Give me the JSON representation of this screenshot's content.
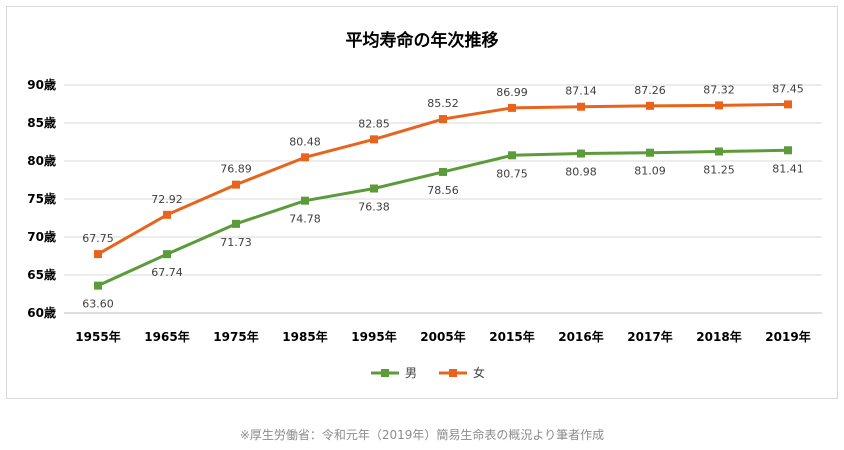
{
  "chart_data": {
    "type": "line",
    "title": "平均寿命の年次推移",
    "categories": [
      "1955年",
      "1965年",
      "1975年",
      "1985年",
      "1995年",
      "2005年",
      "2015年",
      "2016年",
      "2017年",
      "2018年",
      "2019年"
    ],
    "series": [
      {
        "name": "男",
        "color": "#5b9b3a",
        "values": [
          63.6,
          67.74,
          71.73,
          74.78,
          76.38,
          78.56,
          80.75,
          80.98,
          81.09,
          81.25,
          81.41
        ],
        "labels": [
          "63.60",
          "67.74",
          "71.73",
          "74.78",
          "76.38",
          "78.56",
          "80.75",
          "80.98",
          "81.09",
          "81.25",
          "81.41"
        ]
      },
      {
        "name": "女",
        "color": "#e8641d",
        "values": [
          67.75,
          72.92,
          76.89,
          80.48,
          82.85,
          85.52,
          86.99,
          87.14,
          87.26,
          87.32,
          87.45
        ],
        "labels": [
          "67.75",
          "72.92",
          "76.89",
          "80.48",
          "82.85",
          "85.52",
          "86.99",
          "87.14",
          "87.26",
          "87.32",
          "87.45"
        ]
      }
    ],
    "ylim": [
      60,
      90
    ],
    "yticks": [
      60,
      65,
      70,
      75,
      80,
      85,
      90
    ],
    "ytick_labels": [
      "60歳",
      "65歳",
      "70歳",
      "75歳",
      "80歳",
      "85歳",
      "90歳"
    ],
    "grid": true,
    "legend": "bottom-center"
  },
  "source_note": "※厚生労働省：令和元年（2019年）簡易生命表の概況より筆者作成"
}
